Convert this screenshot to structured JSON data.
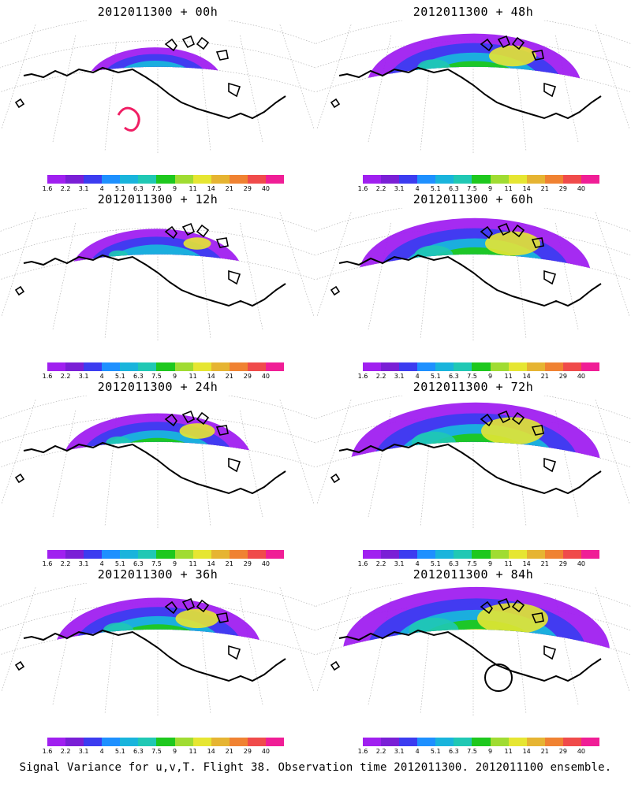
{
  "caption": "Signal Variance for u,v,T. Flight 38. Observation time 2012011300. 2012011100 ensemble.",
  "colorbar": {
    "ticks": [
      "1.6",
      "2.2",
      "3.1",
      "4",
      "5.1",
      "6.3",
      "7.5",
      "9",
      "11",
      "14",
      "21",
      "29",
      "40"
    ],
    "colors": [
      "#a020f0",
      "#7a1fd6",
      "#3c3cf0",
      "#1e90ff",
      "#19b4dc",
      "#20c8b4",
      "#1ec81e",
      "#a0dc32",
      "#e6e632",
      "#e6b432",
      "#f08232",
      "#f04b4b",
      "#f01e96"
    ]
  },
  "panels": [
    {
      "id": "p00",
      "title": "2012011300 + 00h",
      "level": 0.15,
      "marker": "red-track"
    },
    {
      "id": "p12",
      "title": "2012011300 + 12h",
      "level": 0.35
    },
    {
      "id": "p24",
      "title": "2012011300 + 24h",
      "level": 0.45
    },
    {
      "id": "p36",
      "title": "2012011300 + 36h",
      "level": 0.55
    },
    {
      "id": "p48",
      "title": "2012011300 + 48h",
      "level": 0.6
    },
    {
      "id": "p60",
      "title": "2012011300 + 60h",
      "level": 0.7
    },
    {
      "id": "p72",
      "title": "2012011300 + 72h",
      "level": 0.8
    },
    {
      "id": "p84",
      "title": "2012011300 + 84h",
      "level": 0.9,
      "marker": "black-circle"
    }
  ]
}
